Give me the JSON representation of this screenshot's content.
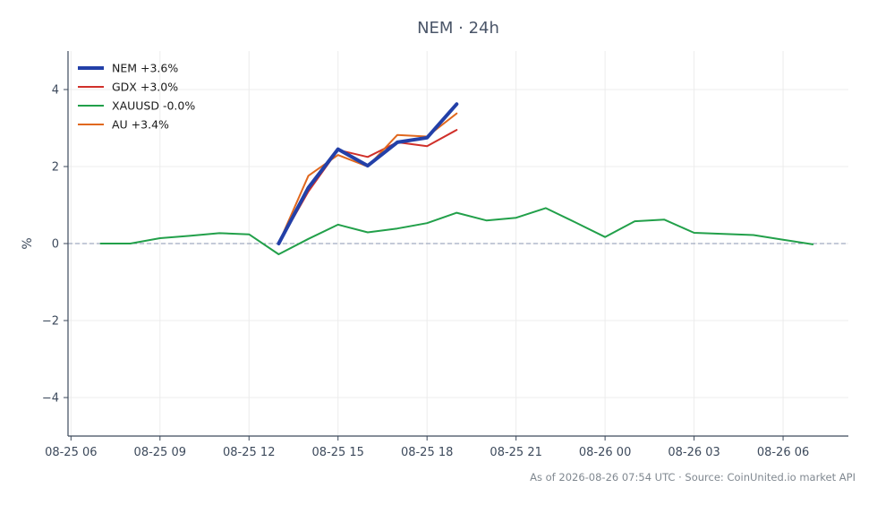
{
  "chart_data": {
    "type": "line",
    "title": "NEM · 24h",
    "xlabel": "",
    "ylabel": "%",
    "x_ticks": [
      "08-25 06",
      "08-25 09",
      "08-25 12",
      "08-25 15",
      "08-25 18",
      "08-25 21",
      "08-26 00",
      "08-26 03",
      "08-26 06"
    ],
    "y_ticks": [
      4,
      2,
      0,
      -2,
      -4
    ],
    "y_tick_labels": [
      "4",
      "2",
      "0",
      "−2",
      "−4"
    ],
    "xlim_hours": [
      5.9,
      32.2
    ],
    "ylim": [
      -5.0,
      5.0
    ],
    "grid": true,
    "zero_line": true,
    "legend_position": "top-left",
    "series": [
      {
        "name": "NEM +3.6%",
        "color": "#2340a8",
        "width": 4,
        "x": [
          13,
          14,
          15,
          16,
          17,
          18,
          19
        ],
        "y": [
          0.0,
          1.45,
          2.45,
          2.02,
          2.63,
          2.75,
          3.62
        ]
      },
      {
        "name": "GDX +3.0%",
        "color": "#d0302a",
        "width": 2,
        "x": [
          13,
          14,
          15,
          16,
          17,
          18,
          19
        ],
        "y": [
          0.0,
          1.35,
          2.43,
          2.25,
          2.63,
          2.53,
          2.95
        ]
      },
      {
        "name": "XAUUSD -0.0%",
        "color": "#22a04a",
        "width": 2,
        "x": [
          7,
          8,
          9,
          10,
          11,
          12,
          13,
          14,
          15,
          16,
          17,
          18,
          19,
          20,
          21,
          22,
          23,
          24,
          25,
          26,
          27,
          28,
          29,
          30,
          31
        ],
        "y": [
          0.0,
          0.0,
          0.14,
          0.2,
          0.27,
          0.24,
          -0.28,
          0.12,
          0.49,
          0.29,
          0.39,
          0.53,
          0.8,
          0.6,
          0.67,
          0.92,
          0.55,
          0.17,
          0.58,
          0.62,
          0.28,
          0.25,
          0.22,
          0.1,
          -0.02
        ]
      },
      {
        "name": "AU +3.4%",
        "color": "#e0681e",
        "width": 2,
        "x": [
          13,
          14,
          15,
          16,
          17,
          18,
          19
        ],
        "y": [
          0.0,
          1.76,
          2.3,
          2.0,
          2.82,
          2.78,
          3.38
        ]
      }
    ]
  },
  "footer": "As of 2026-08-26 07:54 UTC · Source: CoinUnited.io market API"
}
